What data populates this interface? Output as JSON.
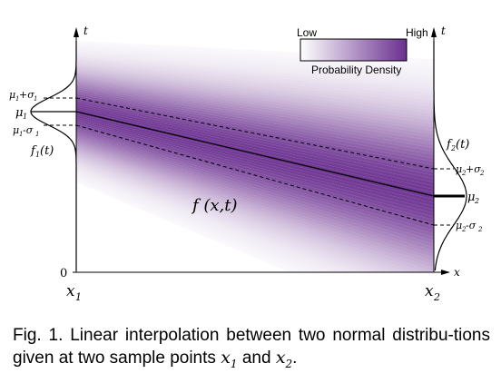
{
  "legend": {
    "low_label": "Low",
    "high_label": "High",
    "title": "Probability Density",
    "color_low": "#ffffff",
    "color_high": "#6a2f8f"
  },
  "axes": {
    "t_label": "t",
    "x_label": "x",
    "zero_label": "0",
    "x1_label": "x",
    "x1_sub": "1",
    "x2_label": "x",
    "x2_sub": "2"
  },
  "left_dist": {
    "mu_plus": "μ",
    "mu_plus_sub": "1",
    "mu_plus_rest": "+σ",
    "mu_plus_rest_sub": "1",
    "mu": "μ",
    "mu_sub": "1",
    "mu_minus": "μ",
    "mu_minus_sub": "1",
    "mu_minus_rest": "-σ",
    "mu_minus_rest_sub": "1",
    "f_label": "f",
    "f_sub": "1",
    "f_arg": "(t)"
  },
  "right_dist": {
    "mu_plus": "μ",
    "mu_plus_sub": "2",
    "mu_plus_rest": "+σ",
    "mu_plus_rest_sub": "2",
    "mu": "μ",
    "mu_sub": "2",
    "mu_minus": "μ",
    "mu_minus_sub": "2",
    "mu_minus_rest": "-σ",
    "mu_minus_rest_sub": "2",
    "f_label": "f",
    "f_sub": "2",
    "f_arg": "(t)"
  },
  "center_label": "f (x,t)",
  "caption": {
    "prefix": "Fig. 1.  Linear interpolation between two normal distribu-tions given at two sample points ",
    "x1": "x",
    "x1_sub": "1",
    "and": " and ",
    "x2": "x",
    "x2_sub": "2",
    "suffix": "."
  }
}
